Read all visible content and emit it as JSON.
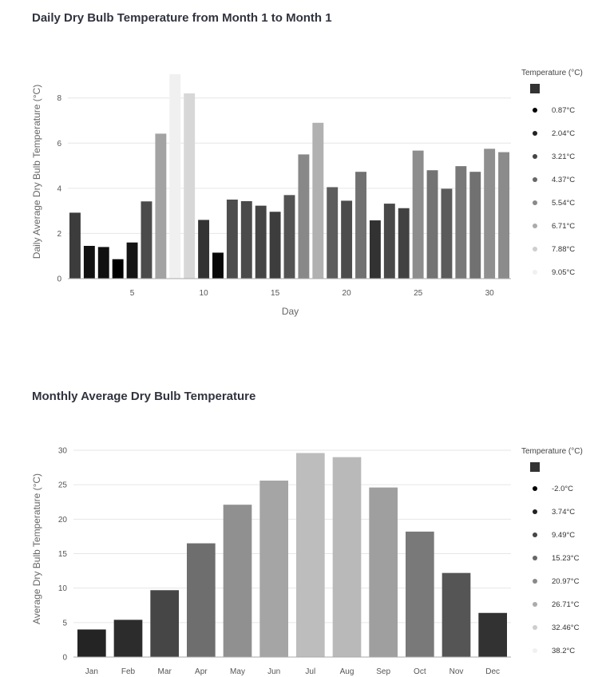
{
  "chart_data": [
    {
      "type": "bar",
      "title": "Daily Dry Bulb Temperature from Month 1 to Month 1",
      "xlabel": "Day",
      "ylabel": "Daily Average Dry Bulb Temperature (°C)",
      "x": [
        1,
        2,
        3,
        4,
        5,
        6,
        7,
        8,
        9,
        10,
        11,
        12,
        13,
        14,
        15,
        16,
        17,
        18,
        19,
        20,
        21,
        22,
        23,
        24,
        25,
        26,
        27,
        28,
        29,
        30,
        31
      ],
      "values": [
        2.92,
        1.45,
        1.4,
        0.86,
        1.6,
        3.42,
        6.42,
        9.05,
        8.2,
        2.6,
        1.15,
        3.5,
        3.43,
        3.23,
        2.96,
        3.7,
        5.5,
        6.9,
        4.05,
        3.45,
        4.73,
        2.58,
        3.32,
        3.12,
        5.67,
        4.8,
        3.98,
        4.98,
        4.73,
        5.75,
        5.6
      ],
      "x_ticks": [
        "5",
        "10",
        "15",
        "20",
        "25",
        "30"
      ],
      "y_ticks": [
        "0",
        "2",
        "4",
        "6",
        "8"
      ],
      "ylim": [
        0,
        9.05
      ],
      "grid": true,
      "legend": {
        "title": "Temperature (°C)",
        "placement": "right",
        "items": [
          "0.87°C",
          "2.04°C",
          "3.21°C",
          "4.37°C",
          "5.54°C",
          "6.71°C",
          "7.88°C",
          "9.05°C"
        ],
        "domain": [
          0.87,
          9.05
        ]
      },
      "color_range": [
        "#000000",
        "#f0f0f0"
      ]
    },
    {
      "type": "bar",
      "title": "Monthly Average Dry Bulb Temperature",
      "xlabel": "",
      "ylabel": "Average Dry Bulb Temperature (°C)",
      "categories": [
        "Jan",
        "Feb",
        "Mar",
        "Apr",
        "May",
        "Jun",
        "Jul",
        "Aug",
        "Sep",
        "Oct",
        "Nov",
        "Dec"
      ],
      "values": [
        4.0,
        5.4,
        9.7,
        16.5,
        22.1,
        25.6,
        29.6,
        29.0,
        24.6,
        18.2,
        12.2,
        6.4
      ],
      "y_ticks": [
        "0",
        "5",
        "10",
        "15",
        "20",
        "25",
        "30"
      ],
      "ylim": [
        0,
        30
      ],
      "grid": true,
      "legend": {
        "title": "Temperature (°C)",
        "placement": "right",
        "items": [
          "-2.0°C",
          "3.74°C",
          "9.49°C",
          "15.23°C",
          "20.97°C",
          "26.71°C",
          "32.46°C",
          "38.2°C"
        ],
        "domain": [
          -2.0,
          38.2
        ]
      },
      "color_range": [
        "#000000",
        "#f0f0f0"
      ]
    }
  ]
}
